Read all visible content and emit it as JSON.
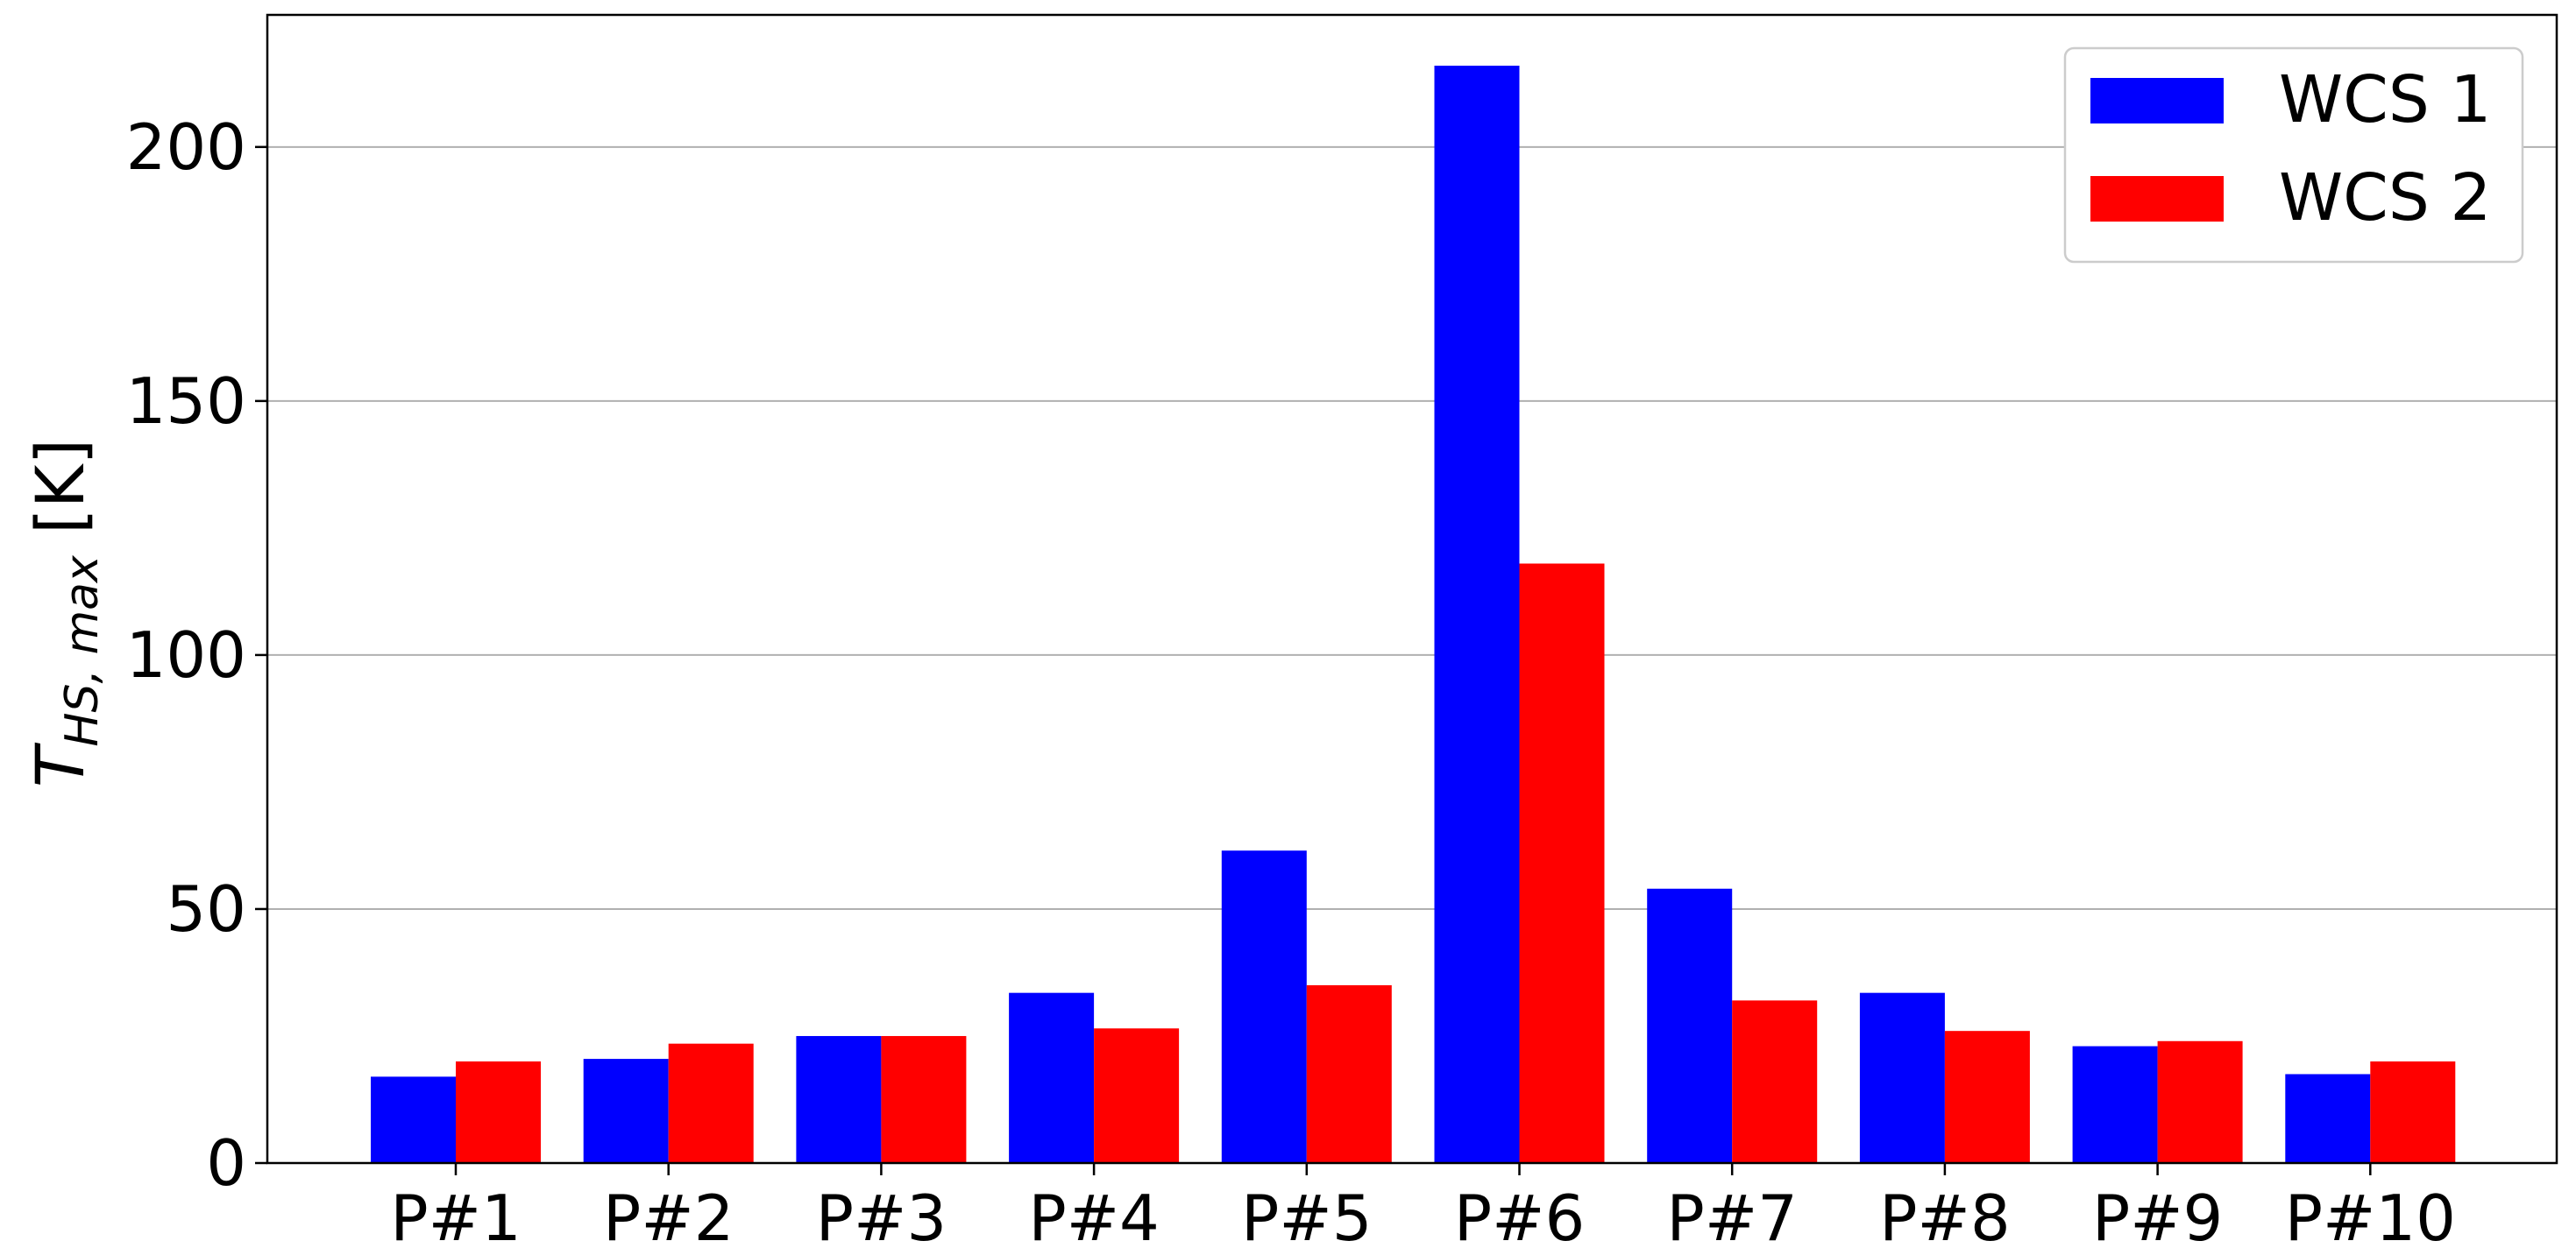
{
  "chart_data": {
    "type": "bar",
    "categories": [
      "P#1",
      "P#2",
      "P#3",
      "P#4",
      "P#5",
      "P#6",
      "P#7",
      "P#8",
      "P#9",
      "P#10"
    ],
    "series": [
      {
        "name": "WCS 1",
        "color": "#0000ff",
        "values": [
          17,
          20.5,
          25,
          33.5,
          61.5,
          216,
          54,
          33.5,
          23,
          17.5
        ]
      },
      {
        "name": "WCS 2",
        "color": "#ff0000",
        "values": [
          20,
          23.5,
          25,
          26.5,
          35,
          118,
          32,
          26,
          24,
          20
        ]
      }
    ],
    "ylabel_main": "T",
    "ylabel_sub": "HS, max",
    "ylabel_unit": " [K]",
    "ylim": [
      0,
      226
    ],
    "yticks": [
      0,
      50,
      100,
      150,
      200
    ],
    "grid": "horizontal",
    "legend_position": "top-right"
  }
}
